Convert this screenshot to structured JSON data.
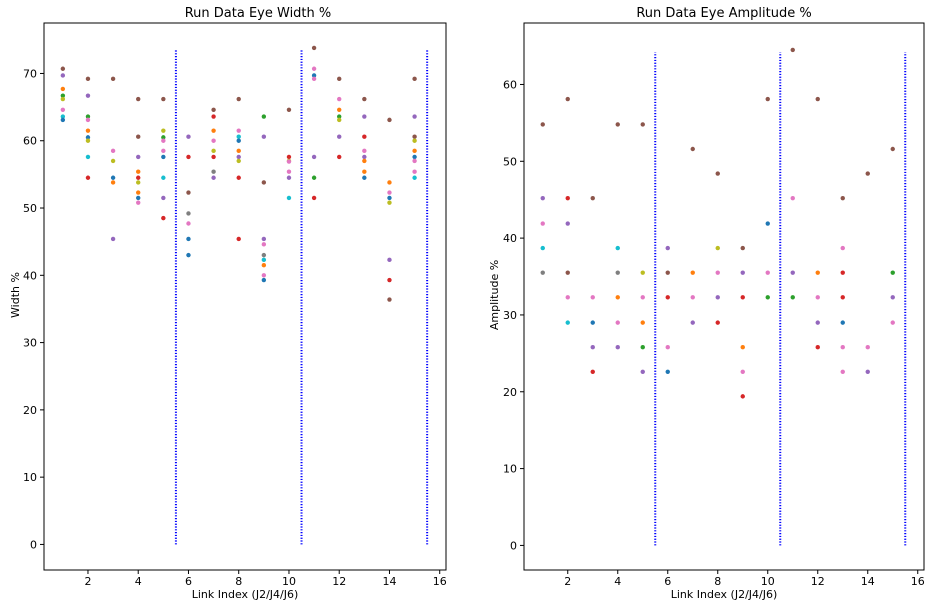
{
  "chart_data": [
    {
      "type": "scatter",
      "title": "Run Data Eye Width %",
      "xlabel": "Link Index (J2/J4/J6)",
      "ylabel": "Width %",
      "xlim": [
        0.25,
        16.25
      ],
      "ylim": [
        -3.8,
        77.5
      ],
      "xticks": [
        2,
        4,
        6,
        8,
        10,
        12,
        14,
        16
      ],
      "yticks": [
        0,
        10,
        20,
        30,
        40,
        50,
        60,
        70
      ],
      "grid": false,
      "vlines": {
        "x": [
          5.5,
          10.5,
          15.5
        ],
        "y_range": [
          0,
          73.5
        ],
        "color": "#0000ff"
      },
      "colors": [
        "#1f77b4",
        "#ff7f0e",
        "#2ca02c",
        "#d62728",
        "#9467bd",
        "#8c564b",
        "#e377c2",
        "#7f7f7f",
        "#bcbd22",
        "#17becf"
      ],
      "points": [
        [
          1,
          70.7,
          5
        ],
        [
          1,
          69.7,
          4
        ],
        [
          1,
          67.7,
          1
        ],
        [
          1,
          66.7,
          2
        ],
        [
          1,
          66.2,
          8
        ],
        [
          1,
          64.6,
          6
        ],
        [
          1,
          63.6,
          9
        ],
        [
          1,
          63.1,
          0
        ],
        [
          2,
          69.2,
          5
        ],
        [
          2,
          66.7,
          4
        ],
        [
          2,
          63.6,
          2
        ],
        [
          2,
          63.1,
          6
        ],
        [
          2,
          61.5,
          1
        ],
        [
          2,
          60.5,
          0
        ],
        [
          2,
          60.0,
          8
        ],
        [
          2,
          57.6,
          9
        ],
        [
          2,
          54.5,
          3
        ],
        [
          3,
          69.2,
          5
        ],
        [
          3,
          58.5,
          6
        ],
        [
          3,
          57.0,
          8
        ],
        [
          3,
          54.5,
          0
        ],
        [
          3,
          53.8,
          1
        ],
        [
          3,
          45.4,
          4
        ],
        [
          4,
          66.2,
          5
        ],
        [
          4,
          60.6,
          5
        ],
        [
          4,
          57.6,
          4
        ],
        [
          4,
          55.4,
          1
        ],
        [
          4,
          54.5,
          3
        ],
        [
          4,
          53.8,
          8
        ],
        [
          4,
          52.3,
          1
        ],
        [
          4,
          51.5,
          0
        ],
        [
          4,
          50.8,
          6
        ],
        [
          5,
          66.2,
          5
        ],
        [
          5,
          61.5,
          8
        ],
        [
          5,
          60.5,
          2
        ],
        [
          5,
          60.0,
          6
        ],
        [
          5,
          58.5,
          6
        ],
        [
          5,
          57.6,
          0
        ],
        [
          5,
          54.5,
          9
        ],
        [
          5,
          51.5,
          4
        ],
        [
          5,
          48.5,
          3
        ],
        [
          6,
          60.6,
          4
        ],
        [
          6,
          57.6,
          3
        ],
        [
          6,
          52.3,
          5
        ],
        [
          6,
          49.2,
          7
        ],
        [
          6,
          47.7,
          6
        ],
        [
          6,
          45.4,
          0
        ],
        [
          6,
          43.0,
          0
        ],
        [
          7,
          64.6,
          5
        ],
        [
          7,
          63.6,
          3
        ],
        [
          7,
          61.5,
          1
        ],
        [
          7,
          60.0,
          6
        ],
        [
          7,
          58.5,
          8
        ],
        [
          7,
          57.6,
          3
        ],
        [
          7,
          55.4,
          7
        ],
        [
          7,
          54.5,
          4
        ],
        [
          8,
          66.2,
          5
        ],
        [
          8,
          61.5,
          6
        ],
        [
          8,
          60.6,
          9
        ],
        [
          8,
          60.0,
          0
        ],
        [
          8,
          58.5,
          1
        ],
        [
          8,
          57.6,
          4
        ],
        [
          8,
          57.0,
          8
        ],
        [
          8,
          54.5,
          3
        ],
        [
          8,
          45.4,
          3
        ],
        [
          9,
          63.6,
          2
        ],
        [
          9,
          60.6,
          4
        ],
        [
          9,
          53.8,
          5
        ],
        [
          9,
          45.4,
          4
        ],
        [
          9,
          44.6,
          6
        ],
        [
          9,
          43.0,
          7
        ],
        [
          9,
          42.3,
          9
        ],
        [
          9,
          41.5,
          1
        ],
        [
          9,
          40.0,
          6
        ],
        [
          9,
          39.3,
          0
        ],
        [
          10,
          64.6,
          5
        ],
        [
          10,
          57.6,
          3
        ],
        [
          10,
          57.0,
          8
        ],
        [
          10,
          56.9,
          6
        ],
        [
          10,
          55.4,
          6
        ],
        [
          10,
          54.5,
          4
        ],
        [
          10,
          51.5,
          9
        ],
        [
          11,
          73.8,
          5
        ],
        [
          11,
          70.7,
          6
        ],
        [
          11,
          69.7,
          0
        ],
        [
          11,
          69.2,
          6
        ],
        [
          11,
          57.6,
          4
        ],
        [
          11,
          54.5,
          2
        ],
        [
          11,
          51.5,
          3
        ],
        [
          12,
          69.2,
          5
        ],
        [
          12,
          66.2,
          6
        ],
        [
          12,
          64.6,
          1
        ],
        [
          12,
          63.6,
          2
        ],
        [
          12,
          63.1,
          8
        ],
        [
          12,
          60.6,
          4
        ],
        [
          12,
          57.6,
          3
        ],
        [
          13,
          66.2,
          5
        ],
        [
          13,
          63.6,
          4
        ],
        [
          13,
          60.6,
          3
        ],
        [
          13,
          58.5,
          6
        ],
        [
          13,
          57.6,
          4
        ],
        [
          13,
          57.0,
          1
        ],
        [
          13,
          55.4,
          1
        ],
        [
          13,
          54.5,
          0
        ],
        [
          14,
          63.1,
          5
        ],
        [
          14,
          53.8,
          1
        ],
        [
          14,
          52.3,
          6
        ],
        [
          14,
          51.5,
          0
        ],
        [
          14,
          50.8,
          8
        ],
        [
          14,
          42.3,
          4
        ],
        [
          14,
          39.3,
          3
        ],
        [
          14,
          36.4,
          5
        ],
        [
          15,
          69.2,
          5
        ],
        [
          15,
          63.6,
          4
        ],
        [
          15,
          60.6,
          5
        ],
        [
          15,
          60.0,
          8
        ],
        [
          15,
          58.5,
          1
        ],
        [
          15,
          57.6,
          0
        ],
        [
          15,
          57.0,
          6
        ],
        [
          15,
          55.4,
          6
        ],
        [
          15,
          54.5,
          9
        ]
      ]
    },
    {
      "type": "scatter",
      "title": "Run Data Eye Amplitude %",
      "xlabel": "Link Index (J2/J4/J6)",
      "ylabel": "Amplitude %",
      "xlim": [
        0.25,
        16.25
      ],
      "ylim": [
        -3.2,
        68
      ],
      "xticks": [
        2,
        4,
        6,
        8,
        10,
        12,
        14,
        16
      ],
      "yticks": [
        0,
        10,
        20,
        30,
        40,
        50,
        60
      ],
      "grid": false,
      "vlines": {
        "x": [
          5.5,
          10.5,
          15.5
        ],
        "y_range": [
          0,
          64.2
        ],
        "color": "#0000ff"
      },
      "colors": [
        "#1f77b4",
        "#ff7f0e",
        "#2ca02c",
        "#d62728",
        "#9467bd",
        "#8c564b",
        "#e377c2",
        "#7f7f7f",
        "#bcbd22",
        "#17becf"
      ],
      "points": [
        [
          1,
          54.8,
          5
        ],
        [
          1,
          45.2,
          4
        ],
        [
          1,
          41.9,
          6
        ],
        [
          1,
          38.7,
          9
        ],
        [
          1,
          35.5,
          7
        ],
        [
          2,
          58.1,
          5
        ],
        [
          2,
          45.2,
          3
        ],
        [
          2,
          41.9,
          4
        ],
        [
          2,
          35.5,
          5
        ],
        [
          2,
          32.3,
          6
        ],
        [
          2,
          29.0,
          9
        ],
        [
          3,
          45.2,
          5
        ],
        [
          3,
          32.3,
          6
        ],
        [
          3,
          29.0,
          0
        ],
        [
          3,
          25.8,
          4
        ],
        [
          3,
          22.6,
          3
        ],
        [
          4,
          54.8,
          5
        ],
        [
          4,
          38.7,
          9
        ],
        [
          4,
          35.5,
          7
        ],
        [
          4,
          32.3,
          1
        ],
        [
          4,
          29.0,
          6
        ],
        [
          4,
          25.8,
          4
        ],
        [
          5,
          54.8,
          5
        ],
        [
          5,
          35.5,
          8
        ],
        [
          5,
          32.3,
          6
        ],
        [
          5,
          29.0,
          1
        ],
        [
          5,
          25.8,
          2
        ],
        [
          5,
          22.6,
          4
        ],
        [
          6,
          38.7,
          4
        ],
        [
          6,
          35.5,
          5
        ],
        [
          6,
          32.3,
          3
        ],
        [
          6,
          25.8,
          6
        ],
        [
          6,
          22.6,
          0
        ],
        [
          7,
          51.6,
          5
        ],
        [
          7,
          35.5,
          1
        ],
        [
          7,
          32.3,
          6
        ],
        [
          7,
          29.0,
          4
        ],
        [
          8,
          48.4,
          5
        ],
        [
          8,
          38.7,
          8
        ],
        [
          8,
          35.5,
          6
        ],
        [
          8,
          32.3,
          4
        ],
        [
          8,
          29.0,
          3
        ],
        [
          9,
          38.7,
          5
        ],
        [
          9,
          35.5,
          4
        ],
        [
          9,
          32.3,
          3
        ],
        [
          9,
          25.8,
          1
        ],
        [
          9,
          22.6,
          6
        ],
        [
          9,
          19.4,
          3
        ],
        [
          10,
          58.1,
          5
        ],
        [
          10,
          41.9,
          0
        ],
        [
          10,
          35.5,
          6
        ],
        [
          10,
          32.3,
          2
        ],
        [
          11,
          64.5,
          5
        ],
        [
          11,
          45.2,
          6
        ],
        [
          11,
          35.5,
          4
        ],
        [
          11,
          32.3,
          2
        ],
        [
          12,
          58.1,
          5
        ],
        [
          12,
          35.5,
          1
        ],
        [
          12,
          32.3,
          6
        ],
        [
          12,
          29.0,
          4
        ],
        [
          12,
          25.8,
          3
        ],
        [
          13,
          45.2,
          5
        ],
        [
          13,
          38.7,
          6
        ],
        [
          13,
          35.5,
          3
        ],
        [
          13,
          32.3,
          3
        ],
        [
          13,
          29.0,
          0
        ],
        [
          13,
          25.8,
          6
        ],
        [
          13,
          22.6,
          6
        ],
        [
          14,
          48.4,
          5
        ],
        [
          14,
          25.8,
          6
        ],
        [
          14,
          22.6,
          4
        ],
        [
          15,
          51.6,
          5
        ],
        [
          15,
          35.5,
          2
        ],
        [
          15,
          32.3,
          4
        ],
        [
          15,
          29.0,
          6
        ]
      ]
    }
  ]
}
